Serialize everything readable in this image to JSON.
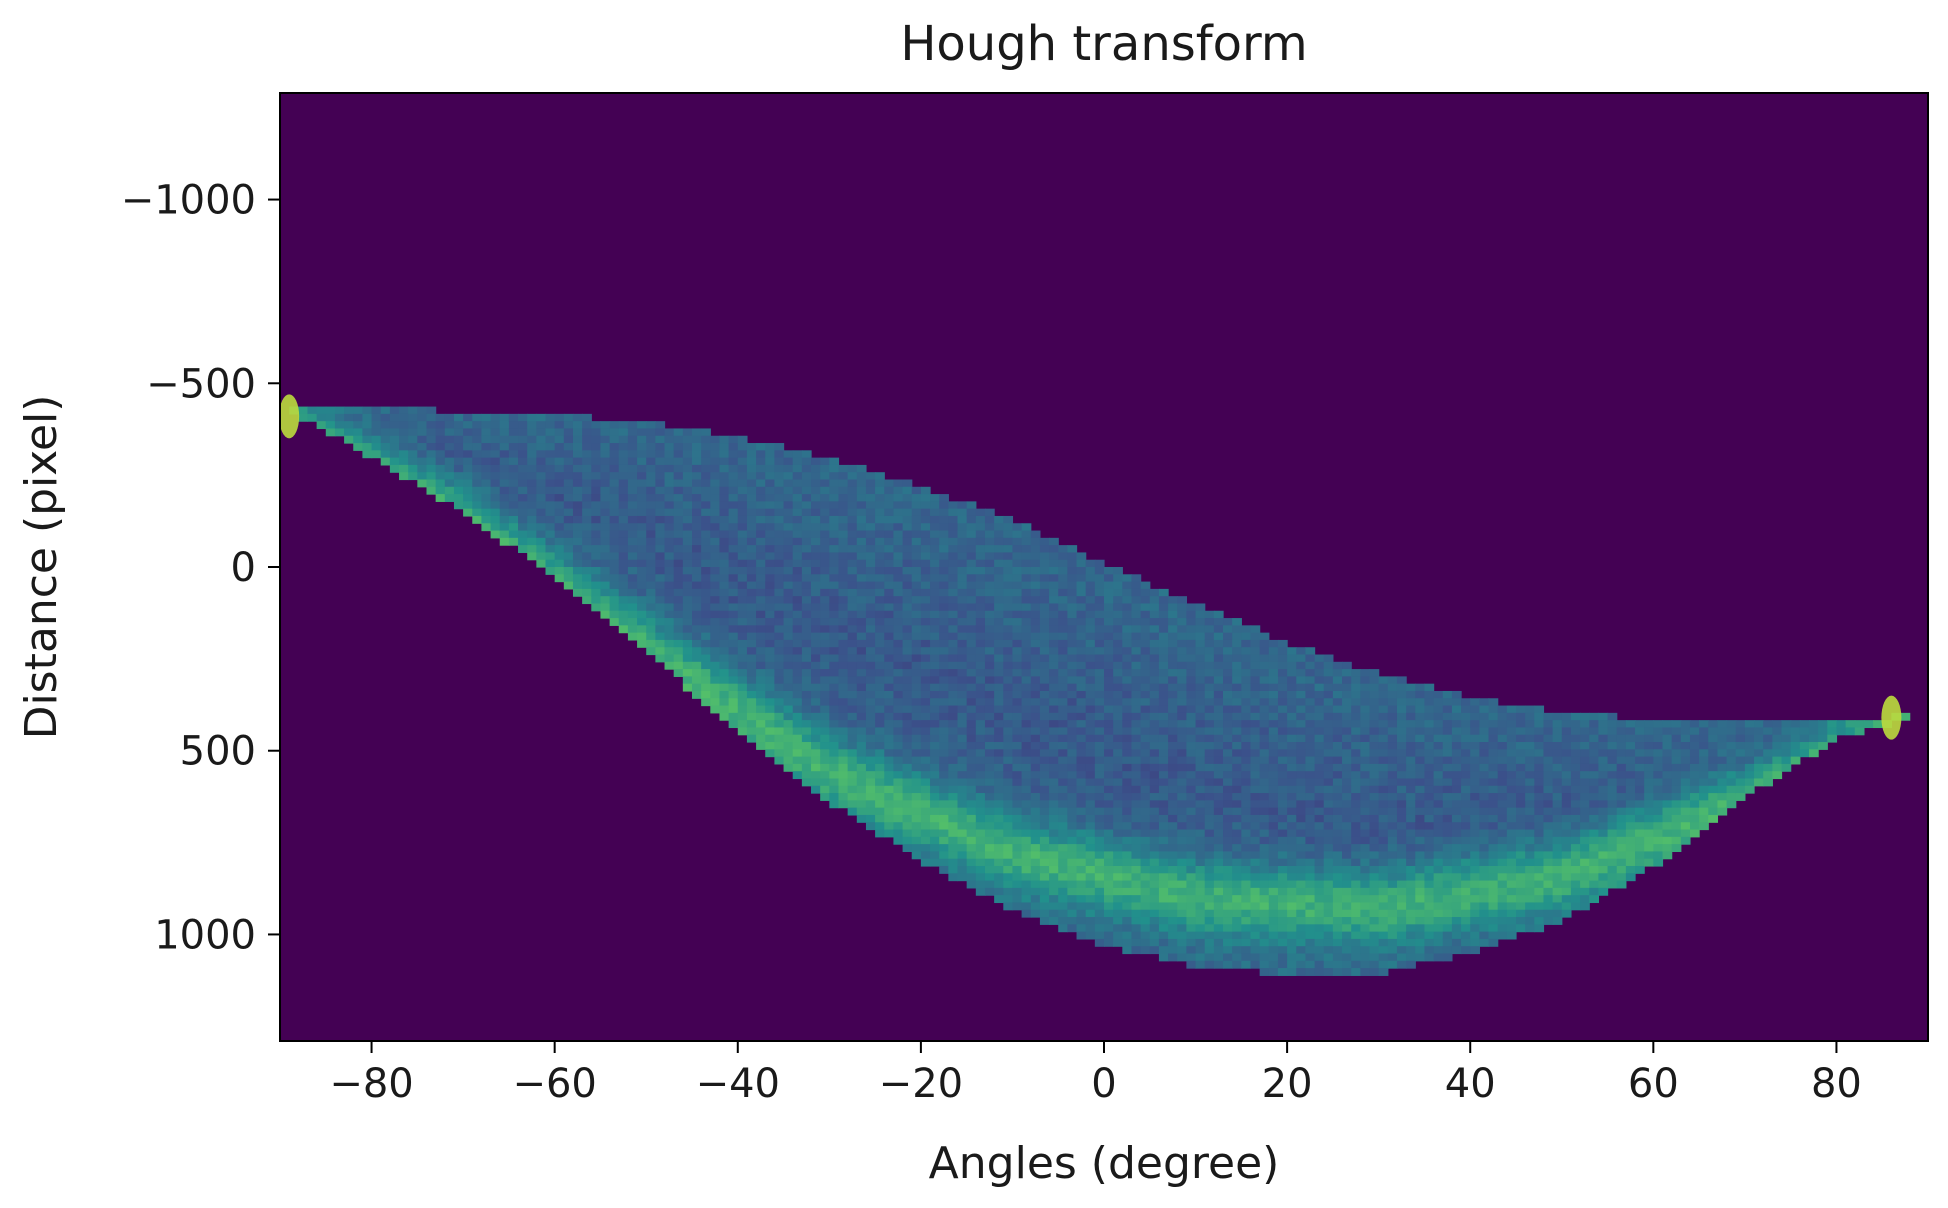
{
  "chart_data": {
    "type": "heatmap",
    "title": "Hough transform",
    "xlabel": "Angles (degree)",
    "ylabel": "Distance (pixel)",
    "xlim": [
      -90,
      90
    ],
    "ylim": [
      1290,
      -1290
    ],
    "y_inverted": true,
    "xticks": [
      -80,
      -60,
      -40,
      -20,
      0,
      20,
      40,
      60,
      80
    ],
    "xtick_labels": [
      "−80",
      "−60",
      "−40",
      "−20",
      "0",
      "20",
      "40",
      "60",
      "80"
    ],
    "yticks": [
      -1000,
      -500,
      0,
      500,
      1000
    ],
    "ytick_labels": [
      "−1000",
      "−500",
      "0",
      "500",
      "1000"
    ],
    "colormap": "viridis",
    "background_color": "#440154",
    "colorbar": false,
    "grid": false,
    "sinusoid_band": {
      "angles_deg": [
        -90,
        -80,
        -70,
        -60,
        -50,
        -40,
        -30,
        -20,
        -10,
        0,
        10,
        20,
        30,
        40,
        50,
        60,
        70,
        80,
        90
      ],
      "upper_edge_distance": [
        -440,
        -430,
        -425,
        -415,
        -395,
        -355,
        -295,
        -220,
        -130,
        -10,
        100,
        205,
        290,
        355,
        395,
        415,
        425,
        425,
        395
      ],
      "lower_edge_distance": [
        -440,
        -300,
        -150,
        30,
        230,
        450,
        640,
        800,
        930,
        1030,
        1085,
        1110,
        1105,
        1050,
        960,
        815,
        625,
        470,
        395
      ],
      "brightest_band": [
        {
          "angle_deg": -90,
          "distance": -390
        },
        {
          "angle_deg": -70,
          "distance": -120
        },
        {
          "angle_deg": -50,
          "distance": 230
        },
        {
          "angle_deg": -30,
          "distance": 560
        },
        {
          "angle_deg": -10,
          "distance": 780
        },
        {
          "angle_deg": 10,
          "distance": 900
        },
        {
          "angle_deg": 30,
          "distance": 930
        },
        {
          "angle_deg": 50,
          "distance": 840
        },
        {
          "angle_deg": 70,
          "distance": 640
        },
        {
          "angle_deg": 90,
          "distance": 390
        }
      ],
      "peak_intensity_points": [
        {
          "angle_deg": -89,
          "distance": -410
        },
        {
          "angle_deg": 86,
          "distance": 410
        }
      ]
    }
  }
}
